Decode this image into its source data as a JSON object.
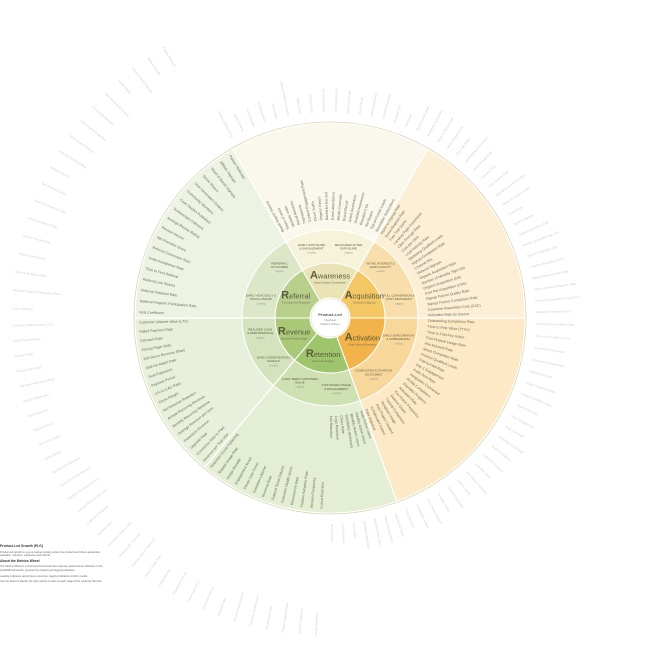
{
  "center": {
    "title": "Product-Led",
    "lines": [
      "Flywheel",
      "Metrics Wheel"
    ]
  },
  "stages": [
    {
      "key": "awareness",
      "letter": "A",
      "rest": "wareness",
      "sub": "Extra Customer Conversation",
      "color": "#e9e3b6",
      "light": "#f6f3da",
      "lighter": "#faf8ec"
    },
    {
      "key": "acquisition",
      "letter": "A",
      "rest": "cquisition",
      "sub": "Get Users to Sign Up",
      "color": "#f3c764",
      "light": "#f8deaa",
      "lighter": "#fcefd6"
    },
    {
      "key": "activation",
      "letter": "A",
      "rest": "ctivation",
      "sub": "Guide Users to Experience",
      "color": "#f2b34a",
      "light": "#f8d79b",
      "lighter": "#fde9c6"
    },
    {
      "key": "retention",
      "letter": "R",
      "rest": "etention",
      "sub": "Keep Users Engaged",
      "color": "#9fc56c",
      "light": "#cfe0b3",
      "lighter": "#e3eed4"
    },
    {
      "key": "revenue",
      "letter": "R",
      "rest": "evenue",
      "sub": "Monetize Product Usage",
      "color": "#a9c979",
      "light": "#d4e3bd",
      "lighter": "#e8f0dc"
    },
    {
      "key": "referral",
      "letter": "R",
      "rest": "eferral",
      "sub": "Turn Users into Promoters",
      "color": "#b9d08d",
      "light": "#dbe7c7",
      "lighter": "#edf3e2"
    }
  ],
  "middle_ring": [
    {
      "stage": "awareness",
      "label": "Early Exposure & Engagement",
      "sub": "Leading"
    },
    {
      "stage": "awareness",
      "label": "Measured After Exposure",
      "sub": "Lagging"
    },
    {
      "stage": "acquisition",
      "label": "Initial Interest & Lead Quality",
      "sub": "Leading"
    },
    {
      "stage": "acquisition",
      "label": "Full Conversion & Cost Efficiency",
      "sub": "Lagging"
    },
    {
      "stage": "activation",
      "label": "Early Exploration & Onboarding",
      "sub": "Leading"
    },
    {
      "stage": "activation",
      "label": "Completed Activation Outcomes",
      "sub": "Lagging"
    },
    {
      "stage": "retention",
      "label": "Continued Usage & Engagement",
      "sub": "Leading"
    },
    {
      "stage": "retention",
      "label": "Long-Term Customer Value",
      "sub": "Lagging"
    },
    {
      "stage": "revenue",
      "label": "Early Monetization Signals",
      "sub": "Leading"
    },
    {
      "stage": "revenue",
      "label": "Realized Cash & Performance",
      "sub": "Lagging"
    },
    {
      "stage": "referral",
      "label": "Early Advocacy & Social Proof",
      "sub": "Leading"
    },
    {
      "stage": "referral",
      "label": "Referral Outcomes",
      "sub": "Lagging"
    }
  ],
  "metrics": {
    "awareness": [
      "Brand Search Volume",
      "Share of Voice",
      "Website Visits",
      "Social Mentions",
      "Impressions",
      "Content Engagement Rate",
      "Direct Traffic",
      "Organic Reach",
      "Backlinks Earned",
      "Event Attendance",
      "Media Coverage",
      "Brand Recall",
      "Aided Awareness",
      "Unaided Awareness",
      "Branded CTR",
      "Net Reach",
      "Top-of-Funnel Leads",
      "Newsletter Subscribers"
    ],
    "acquisition": [
      "Visitor-to-Signup Rate",
      "Demo Request Rate",
      "Free Trial Starts",
      "Landing Page Conversion",
      "Click-Through Rate",
      "Cost per Click",
      "Lead Velocity Rate",
      "Marketing Qualified Leads",
      "Signup Completion Rate",
      "Channel Mix",
      "Referral Signups",
      "Organic Acquisition Rate",
      "Number of Monthly Sign-Ups",
      "Organic Acquisition (OA)",
      "Cost Per Acquisition (CPA)",
      "Signup Funnel Quality Rate",
      "Signup Funnel Completion Rate",
      "Customer Acquisition Cost (CAC)",
      "Activation Rate by Source"
    ],
    "activation": [
      "Onboarding Completion Rate",
      "Time to First Value (TTFV)",
      "Time to First Key Action",
      "First Feature Usage Rate",
      "Aha Moment Rate",
      "Setup Completion Rate",
      "Product Qualified Leads",
      "Trial-to-Paid Rate",
      "Day 1 Engagement",
      "Invite Sent Rate",
      "Integration Connected",
      "Profile Completion",
      "Checklist Progress",
      "Activation Rate",
      "Key Action Frequency",
      "Session Depth",
      "Tutorial Completion",
      "Template Usage",
      "First Project Created",
      "Collaborator Added",
      "Data Imported"
    ],
    "retention": [
      "Daily Active Users",
      "Weekly Active Users",
      "Monthly Active Users",
      "DAU/MAU Stickiness",
      "Churn Rate",
      "Logo Retention",
      "Net Retention",
      "Cohort Retention",
      "Session Frequency",
      "Feature Adoption Rate",
      "Resurrection Rate",
      "Customer Health Score",
      "Support Ticket Volume",
      "Renewal Rate",
      "Customer Lifetime",
      "Power User Curve",
      "Engagement Score",
      "Usage Breadth",
      "Repeat Usage Rate",
      "Retention Curve Flattening"
    ],
    "revenue": [
      "Revenue per Trial User",
      "Conversion Rate to Paid",
      "Upgrade Rate",
      "Expansion Revenue",
      "Average Revenue per User",
      "Monthly Recurring Revenue",
      "Annual Recurring Revenue",
      "Net Revenue Retention",
      "Gross Margin",
      "LTV to CAC Ratio",
      "Payback Period",
      "Seat Expansion",
      "Add-On Attach Rate",
      "Self-Serve Revenue Share",
      "Pricing Page Visits",
      "Discount Rate",
      "Failed Payment Rate",
      "Customer Lifetime Value (LTV)"
    ],
    "referral": [
      "Viral Coefficient",
      "Referral Program Participation Rate",
      "Referral Invitation Rate",
      "Referral Link Shares",
      "Time to First Referral",
      "Invite Acceptance Rate",
      "Referral Conversion Rate",
      "Net Promoter Score",
      "Review Volume",
      "Average Review Rating",
      "Testimonials Collected",
      "Case Studies Published",
      "Community Members",
      "User-Generated Content",
      "Social Shares",
      "Word of Mouth Signups",
      "Affiliate Signups",
      "Partner Referrals"
    ]
  },
  "legend": {
    "title": "Product-Led Growth (PLG)",
    "para1": "Product-led growth is a go-to-market strategy where the product itself drives acquisition, activation, retention, expansion and referral.",
    "title2": "About the Metrics Wheel",
    "para2": "The Metrics Wheel is a structured framework that maps key performance indicators to the AAARRR framework, grouped into leading and lagging indicators.",
    "para3": "Leading indicators signal future outcomes; lagging indicators confirm results.",
    "para4": "Use the wheel to identify the right metrics to track at each stage of the customer lifecycle."
  },
  "colors": {
    "divider": "#ffffff",
    "stage_text": "#5a5a3c",
    "spoke_text": "#6b6b55",
    "outer_text": "#cfcfcf",
    "center_fill": "#ffffff",
    "outer_border": "#d9d2b2"
  }
}
